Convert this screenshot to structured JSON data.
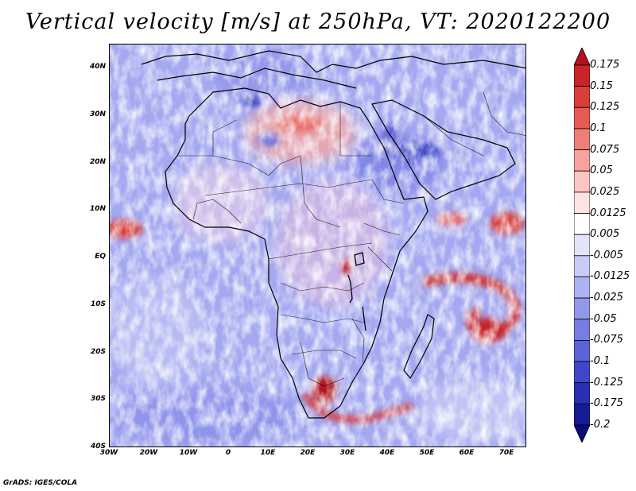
{
  "title": "Vertical velocity [m/s] at 250hPa, VT: 2020122200",
  "footer": "GrADS: IGES/COLA",
  "map": {
    "lon_range": [
      -30,
      75
    ],
    "lat_range": [
      -40,
      45
    ],
    "lat_labels": [
      "40N",
      "30N",
      "20N",
      "10N",
      "EQ",
      "10S",
      "20S",
      "30S",
      "40S"
    ],
    "lon_labels": [
      "30W",
      "20W",
      "10W",
      "0",
      "10E",
      "20E",
      "30E",
      "40E",
      "50E",
      "60E",
      "70E"
    ]
  },
  "colorbar": {
    "levels": [
      "0.175",
      "0.15",
      "0.125",
      "0.1",
      "0.075",
      "0.05",
      "0.025",
      "0.0125",
      "0.005",
      "-0.005",
      "-0.0125",
      "-0.025",
      "-0.05",
      "-0.075",
      "-0.1",
      "-0.125",
      "-0.175",
      "-0.2"
    ],
    "colors": [
      "#b3121c",
      "#c8242a",
      "#d93e3a",
      "#e65a54",
      "#f07d76",
      "#f7a29d",
      "#fbc6c2",
      "#fde4e2",
      "#ffffff",
      "#e2e4fb",
      "#c7cbf5",
      "#adb2f0",
      "#9298ea",
      "#777de3",
      "#5c62d8",
      "#4147c8",
      "#2a2fb3",
      "#171b96",
      "#0a0d78"
    ]
  }
}
